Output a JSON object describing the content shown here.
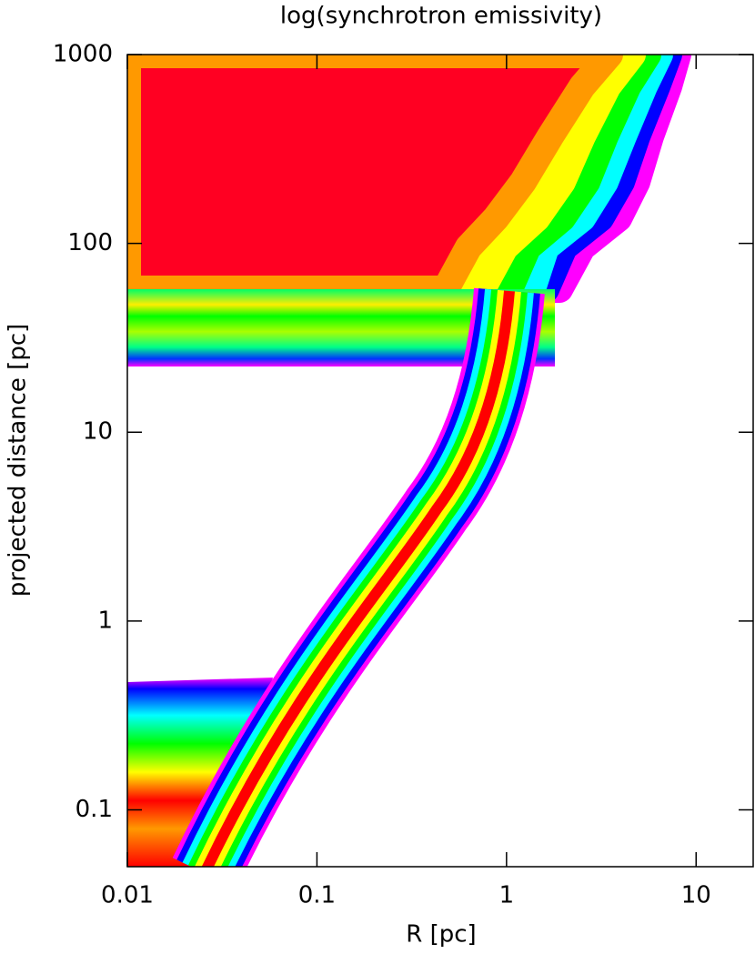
{
  "chart_data": {
    "type": "heatmap",
    "title": "log(synchrotron emissivity)",
    "xlabel": "R [pc]",
    "ylabel": "projected distance [pc]",
    "xscale": "log",
    "yscale": "log",
    "xlim": [
      0.01,
      20
    ],
    "ylim": [
      0.05,
      1000
    ],
    "xticks": [
      0.01,
      0.1,
      1,
      10
    ],
    "yticks": [
      0.1,
      1,
      10,
      100,
      1000
    ]
  }
}
